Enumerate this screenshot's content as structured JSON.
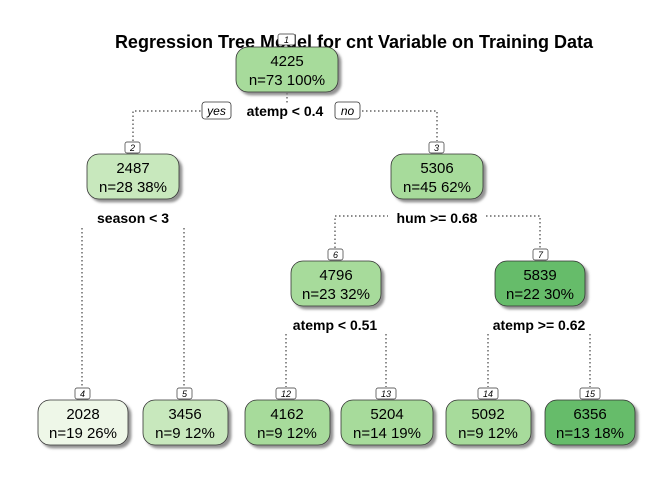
{
  "title": "Regression Tree Model for cnt Variable on Training Data",
  "yes_label": "yes",
  "no_label": "no",
  "colors": {
    "light": "#eef7e8",
    "mid_light": "#c8e8bd",
    "mid": "#a7db9b",
    "dark": "#66bc6a"
  },
  "nodes": [
    {
      "id": "1",
      "value": "4225",
      "stats": "n=73  100%",
      "split": "atemp < 0.4"
    },
    {
      "id": "2",
      "value": "2487",
      "stats": "n=28  38%",
      "split": "season < 3"
    },
    {
      "id": "3",
      "value": "5306",
      "stats": "n=45  62%",
      "split": "hum >= 0.68"
    },
    {
      "id": "6",
      "value": "4796",
      "stats": "n=23  32%",
      "split": "atemp < 0.51"
    },
    {
      "id": "7",
      "value": "5839",
      "stats": "n=22  30%",
      "split": "atemp >= 0.62"
    },
    {
      "id": "4",
      "value": "2028",
      "stats": "n=19  26%"
    },
    {
      "id": "5",
      "value": "3456",
      "stats": "n=9  12%"
    },
    {
      "id": "12",
      "value": "4162",
      "stats": "n=9  12%"
    },
    {
      "id": "13",
      "value": "5204",
      "stats": "n=14  19%"
    },
    {
      "id": "14",
      "value": "5092",
      "stats": "n=9  12%"
    },
    {
      "id": "15",
      "value": "6356",
      "stats": "n=13  18%"
    }
  ]
}
